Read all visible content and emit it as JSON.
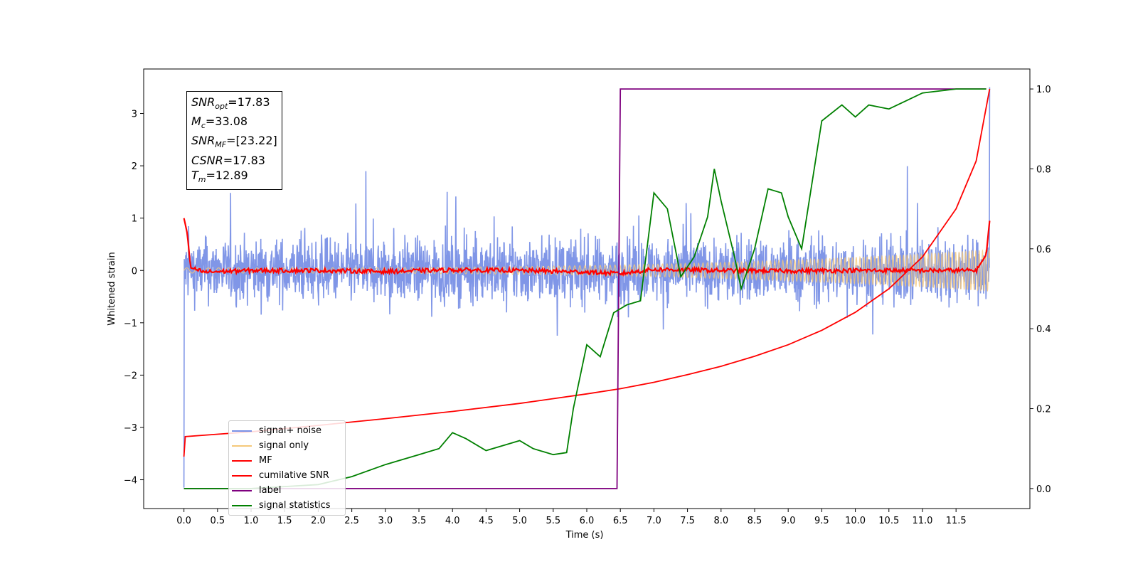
{
  "chart_data": {
    "type": "line",
    "xlabel": "Time (s)",
    "ylabel": "Whitened strain",
    "xlim": [
      -0.6,
      12.6
    ],
    "ylim": [
      -4.55,
      3.85
    ],
    "ylim_right": [
      -0.05,
      1.05
    ],
    "x_ticks": [
      "0.0",
      "0.5",
      "1.0",
      "1.5",
      "2.0",
      "2.5",
      "3.0",
      "3.5",
      "4.0",
      "4.5",
      "5.0",
      "5.5",
      "6.0",
      "6.5",
      "7.0",
      "7.5",
      "8.0",
      "8.5",
      "9.0",
      "9.5",
      "10.0",
      "10.5",
      "11.0",
      "11.5"
    ],
    "y_ticks": [
      "3",
      "2",
      "1",
      "0",
      "−1",
      "−2",
      "−3",
      "−4"
    ],
    "y_ticks_right": [
      "1.0",
      "0.8",
      "0.6",
      "0.4",
      "0.2",
      "0.0"
    ],
    "legend_location": "lower-left",
    "grid": false,
    "series": [
      {
        "name": "signal+ noise",
        "color": "#7990e6",
        "axis": "left",
        "style": "dense noise band",
        "amplitude": 0.9,
        "x_start": 0.0,
        "x_end": 12.0
      },
      {
        "name": "signal only",
        "color": "#f5c87a",
        "axis": "left",
        "style": "chirp oscillation",
        "amplitude_start": 0.05,
        "amplitude_end": 0.4
      },
      {
        "name": "MF",
        "color": "#ff0000",
        "axis": "left",
        "x": [
          0.0,
          0.05,
          0.1,
          0.3,
          1.0,
          2.0,
          3.0,
          4.0,
          5.0,
          6.0,
          6.5,
          7.0,
          8.0,
          9.0,
          10.0,
          11.0,
          11.8,
          11.95,
          12.0
        ],
        "y": [
          1.0,
          0.7,
          0.05,
          -0.03,
          0.0,
          0.0,
          -0.02,
          0.01,
          0.0,
          -0.03,
          -0.06,
          0.02,
          0.0,
          -0.01,
          0.0,
          0.0,
          0.0,
          0.3,
          0.95
        ]
      },
      {
        "name": "cumilative SNR",
        "color": "#ff0000",
        "axis": "right",
        "x": [
          0.0,
          0.02,
          0.5,
          1.0,
          2.0,
          3.0,
          4.0,
          5.0,
          6.0,
          6.5,
          7.0,
          7.5,
          8.0,
          8.5,
          9.0,
          9.5,
          10.0,
          10.5,
          11.0,
          11.5,
          11.8,
          12.0
        ],
        "y": [
          0.08,
          0.13,
          0.136,
          0.142,
          0.158,
          0.175,
          0.193,
          0.213,
          0.237,
          0.25,
          0.266,
          0.285,
          0.306,
          0.331,
          0.36,
          0.396,
          0.441,
          0.5,
          0.58,
          0.7,
          0.82,
          1.0
        ]
      },
      {
        "name": "label",
        "color": "#7f007f",
        "axis": "right",
        "x": [
          0.0,
          6.45,
          6.5,
          11.95
        ],
        "y": [
          0.0,
          0.0,
          1.0,
          1.0
        ]
      },
      {
        "name": "signal statistics",
        "color": "#008000",
        "axis": "right",
        "x": [
          0.0,
          0.5,
          1.0,
          1.5,
          2.0,
          2.5,
          3.0,
          3.2,
          3.5,
          3.8,
          4.0,
          4.2,
          4.5,
          4.8,
          5.0,
          5.2,
          5.5,
          5.7,
          5.8,
          6.0,
          6.2,
          6.4,
          6.6,
          6.8,
          7.0,
          7.2,
          7.4,
          7.6,
          7.8,
          7.9,
          8.0,
          8.2,
          8.3,
          8.5,
          8.7,
          8.9,
          9.0,
          9.2,
          9.5,
          9.8,
          10.0,
          10.2,
          10.5,
          11.0,
          11.5,
          11.95
        ],
        "y": [
          0.0,
          0.0,
          0.0,
          0.005,
          0.01,
          0.03,
          0.06,
          0.07,
          0.085,
          0.1,
          0.14,
          0.125,
          0.095,
          0.11,
          0.12,
          0.1,
          0.085,
          0.09,
          0.2,
          0.36,
          0.33,
          0.44,
          0.46,
          0.47,
          0.74,
          0.7,
          0.53,
          0.58,
          0.68,
          0.8,
          0.72,
          0.58,
          0.5,
          0.6,
          0.75,
          0.74,
          0.68,
          0.6,
          0.92,
          0.96,
          0.93,
          0.96,
          0.95,
          0.99,
          1.0,
          1.0
        ]
      }
    ],
    "annotation": {
      "snr_opt": "=17.83",
      "mc": "=33.08",
      "snr_mf": "=[23.22]",
      "csnr": "=17.83",
      "tm": "=12.89"
    }
  }
}
